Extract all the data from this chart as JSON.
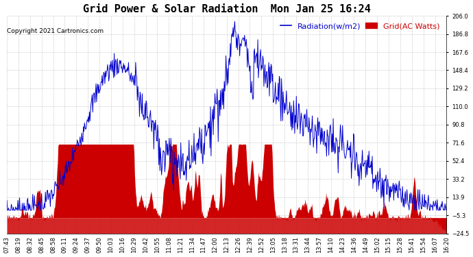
{
  "title": "Grid Power & Solar Radiation  Mon Jan 25 16:24",
  "copyright_text": "Copyright 2021 Cartronics.com",
  "legend_radiation": "Radiation(w/m2)",
  "legend_grid": "Grid(AC Watts)",
  "radiation_color": "#0000cc",
  "grid_color": "#cc0000",
  "y_min": -24.5,
  "y_max": 206.0,
  "y_ticks": [
    206.0,
    186.8,
    167.6,
    148.4,
    129.2,
    110.0,
    90.8,
    71.6,
    52.4,
    33.2,
    13.9,
    -5.3,
    -24.5
  ],
  "background_color": "#ffffff",
  "title_fontsize": 11,
  "tick_fontsize": 6,
  "legend_fontsize": 8,
  "copyright_fontsize": 6.5,
  "x_labels": [
    "07:43",
    "08:19",
    "08:32",
    "08:45",
    "08:58",
    "09:11",
    "09:24",
    "09:37",
    "09:50",
    "10:03",
    "10:16",
    "10:29",
    "10:42",
    "10:55",
    "11:08",
    "11:21",
    "11:34",
    "11:47",
    "12:00",
    "12:13",
    "12:26",
    "12:39",
    "12:52",
    "13:05",
    "13:18",
    "13:31",
    "13:44",
    "13:57",
    "14:10",
    "14:23",
    "14:36",
    "14:49",
    "15:02",
    "15:15",
    "15:28",
    "15:41",
    "15:54",
    "16:07",
    "16:20"
  ]
}
